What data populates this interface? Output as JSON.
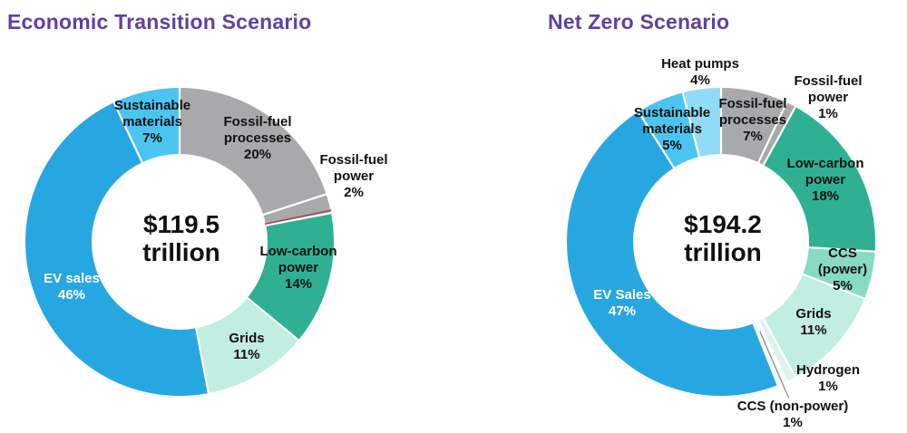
{
  "page": {
    "background": "#FFFFFF",
    "title_color": "#63409F",
    "label_color": "#111111",
    "label_light_color": "#FFFFFF"
  },
  "chart_data": [
    {
      "type": "pie",
      "subtype": "donut",
      "title": "Economic Transition Scenario",
      "center": {
        "value": "$119.5",
        "unit": "trillion"
      },
      "total_text": "$119.5 trillion",
      "value_unit": "%",
      "start_angle_deg": 0,
      "direction": "clockwise",
      "categories": [
        "Fossil-fuel processes",
        "Fossil-fuel power",
        "Low-carbon power",
        "Grids",
        "EV sales",
        "Sustainable materials"
      ],
      "values": [
        20,
        2,
        14,
        11,
        46,
        7
      ],
      "value_labels": [
        "20%",
        "2%",
        "14%",
        "11%",
        "46%",
        "7%"
      ],
      "colors": [
        "#A7A9AB",
        "#A7A9AB",
        "#2FB093",
        "#C2EDE1",
        "#27A7E2",
        "#4BC5F0"
      ],
      "annotations": [
        {
          "type": "red-separator",
          "after_category": "Fossil-fuel power",
          "color": "#A23F3F"
        }
      ]
    },
    {
      "type": "pie",
      "subtype": "donut",
      "title": "Net Zero Scenario",
      "center": {
        "value": "$194.2",
        "unit": "trillion"
      },
      "total_text": "$194.2 trillion",
      "value_unit": "%",
      "start_angle_deg": 0,
      "direction": "clockwise",
      "categories": [
        "Fossil-fuel processes",
        "Fossil-fuel power",
        "Low-carbon power",
        "CCS (power)",
        "Grids",
        "Hydrogen",
        "CCS (non-power)",
        "EV Sales",
        "Sustainable materials",
        "Heat pumps"
      ],
      "values": [
        7,
        1,
        18,
        5,
        11,
        1,
        1,
        47,
        5,
        4
      ],
      "value_labels": [
        "7%",
        "1%",
        "18%",
        "5%",
        "11%",
        "1%",
        "1%",
        "47%",
        "5%",
        "4%"
      ],
      "colors": [
        "#A7A9AB",
        "#A7A9AB",
        "#2FB093",
        "#88DAC3",
        "#C2EDE1",
        "#DDF3ED",
        "#F2FAF7",
        "#27A7E2",
        "#4BC5F0",
        "#90DBF5"
      ],
      "annotations": [
        {
          "type": "leader-line",
          "category": "CCS (non-power)",
          "color": "#8E9296"
        }
      ]
    }
  ]
}
